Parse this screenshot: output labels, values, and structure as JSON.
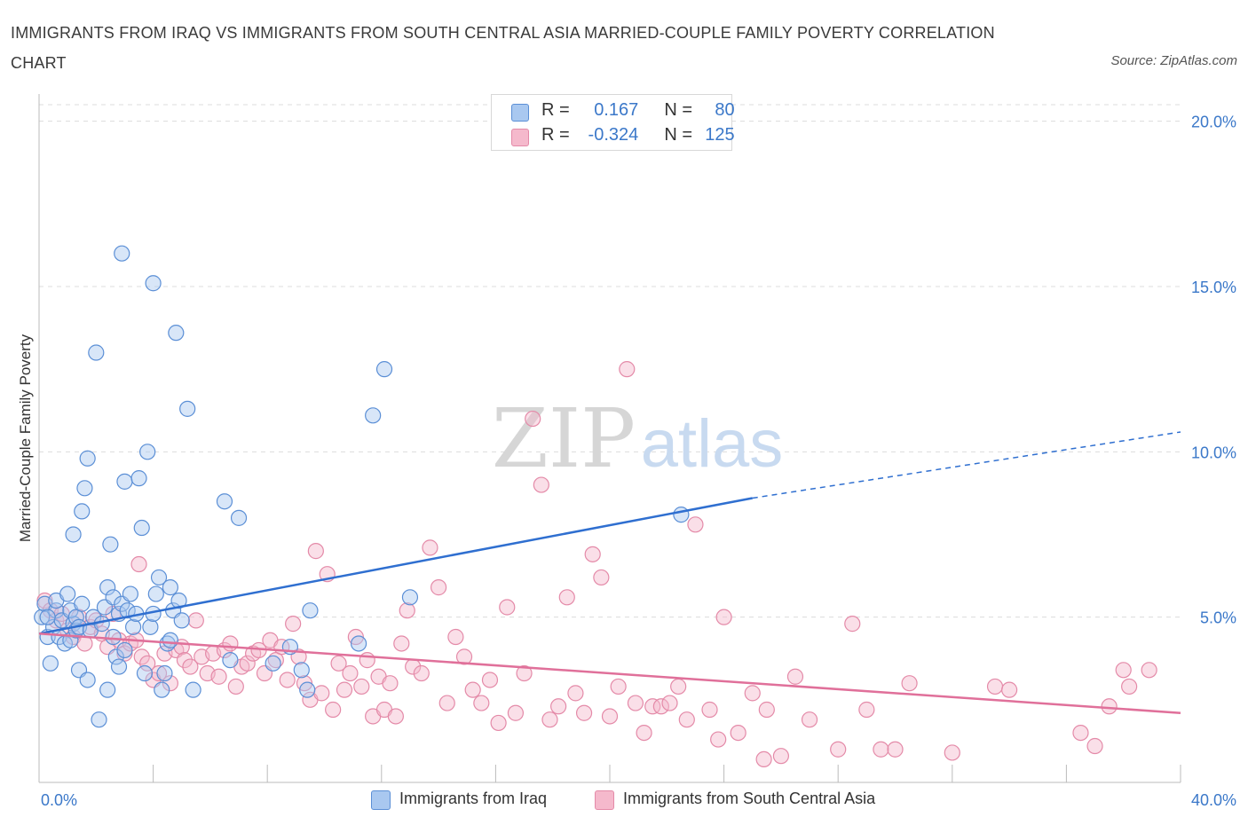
{
  "header": {
    "title": "IMMIGRANTS FROM IRAQ VS IMMIGRANTS FROM SOUTH CENTRAL ASIA MARRIED-COUPLE FAMILY POVERTY CORRELATION CHART",
    "source": "Source: ZipAtlas.com"
  },
  "watermark": {
    "zip": "ZIP",
    "atlas": "atlas"
  },
  "legend": {
    "rows": [
      {
        "r_label": "R =",
        "r_value": "0.167",
        "n_label": "N =",
        "n_value": "80",
        "color": "#a9c8f0"
      },
      {
        "r_label": "R =",
        "r_value": "-0.324",
        "n_label": "N =",
        "n_value": "125",
        "color": "#f5b9cc"
      }
    ]
  },
  "bottom_legend": [
    {
      "label": "Immigrants from Iraq",
      "color": "#a9c8f0"
    },
    {
      "label": "Immigrants from South Central Asia",
      "color": "#f5b9cc"
    }
  ],
  "colors": {
    "iraq_fill": "#a9c8f0",
    "iraq_stroke": "#5b8fd6",
    "iraq_line": "#2f6fd0",
    "sca_fill": "#f5b9cc",
    "sca_stroke": "#e48aa8",
    "sca_line": "#e0709a",
    "axis_text": "#3b78c9",
    "grid": "#dcdcdc"
  },
  "chart_data": {
    "type": "scatter",
    "title": "IMMIGRANTS FROM IRAQ VS IMMIGRANTS FROM SOUTH CENTRAL ASIA MARRIED-COUPLE FAMILY POVERTY CORRELATION CHART",
    "xlabel": "",
    "ylabel": "Married-Couple Family Poverty",
    "xlim": [
      0,
      40
    ],
    "ylim": [
      0,
      20.5
    ],
    "x_tick_labels": [
      "0.0%",
      "40.0%"
    ],
    "y_ticks": [
      5,
      10,
      15,
      20
    ],
    "y_tick_labels": [
      "5.0%",
      "10.0%",
      "15.0%",
      "20.0%"
    ],
    "grid": "horizontal dashed",
    "legend": "top-center",
    "series": [
      {
        "name": "Immigrants from Iraq",
        "trend": {
          "x": [
            0,
            25
          ],
          "y": [
            4.5,
            8.6
          ],
          "dashed_to": [
            40,
            10.6
          ]
        },
        "points": [
          [
            0.1,
            5.0
          ],
          [
            0.2,
            5.4
          ],
          [
            0.3,
            4.4
          ],
          [
            0.4,
            3.6
          ],
          [
            0.5,
            4.7
          ],
          [
            0.6,
            5.2
          ],
          [
            0.6,
            5.5
          ],
          [
            0.7,
            4.4
          ],
          [
            0.8,
            4.9
          ],
          [
            0.9,
            4.2
          ],
          [
            1.0,
            5.7
          ],
          [
            1.1,
            4.3
          ],
          [
            1.2,
            4.8
          ],
          [
            1.3,
            4.6
          ],
          [
            1.1,
            5.2
          ],
          [
            1.2,
            7.5
          ],
          [
            1.3,
            5.0
          ],
          [
            1.4,
            4.7
          ],
          [
            1.4,
            3.4
          ],
          [
            1.5,
            5.4
          ],
          [
            1.5,
            8.2
          ],
          [
            1.6,
            8.9
          ],
          [
            1.7,
            3.1
          ],
          [
            1.7,
            9.8
          ],
          [
            1.8,
            4.6
          ],
          [
            1.9,
            5.0
          ],
          [
            2.0,
            13.0
          ],
          [
            2.1,
            1.9
          ],
          [
            2.2,
            4.8
          ],
          [
            2.3,
            5.3
          ],
          [
            2.4,
            2.8
          ],
          [
            2.4,
            5.9
          ],
          [
            2.5,
            7.2
          ],
          [
            2.6,
            4.4
          ],
          [
            2.6,
            5.6
          ],
          [
            2.7,
            3.8
          ],
          [
            2.8,
            3.5
          ],
          [
            2.8,
            5.1
          ],
          [
            2.9,
            5.4
          ],
          [
            3.0,
            4.0
          ],
          [
            3.0,
            9.1
          ],
          [
            3.1,
            5.2
          ],
          [
            3.2,
            5.7
          ],
          [
            3.3,
            4.7
          ],
          [
            3.4,
            5.1
          ],
          [
            3.5,
            9.2
          ],
          [
            3.6,
            7.7
          ],
          [
            3.7,
            3.3
          ],
          [
            3.8,
            10.0
          ],
          [
            3.9,
            4.7
          ],
          [
            4.0,
            5.1
          ],
          [
            4.1,
            5.7
          ],
          [
            4.2,
            6.2
          ],
          [
            4.3,
            2.8
          ],
          [
            4.4,
            3.3
          ],
          [
            4.5,
            4.2
          ],
          [
            4.6,
            4.3
          ],
          [
            4.6,
            5.9
          ],
          [
            4.7,
            5.2
          ],
          [
            4.8,
            13.6
          ],
          [
            4.9,
            5.5
          ],
          [
            5.0,
            4.9
          ],
          [
            5.2,
            11.3
          ],
          [
            5.4,
            2.8
          ],
          [
            2.9,
            16.0
          ],
          [
            4.0,
            15.1
          ],
          [
            6.5,
            8.5
          ],
          [
            6.7,
            3.7
          ],
          [
            7.0,
            8.0
          ],
          [
            8.2,
            3.6
          ],
          [
            8.8,
            4.1
          ],
          [
            9.2,
            3.4
          ],
          [
            9.4,
            2.8
          ],
          [
            9.5,
            5.2
          ],
          [
            11.2,
            4.2
          ],
          [
            11.7,
            11.1
          ],
          [
            12.1,
            12.5
          ],
          [
            13.0,
            5.6
          ],
          [
            22.5,
            8.1
          ],
          [
            0.3,
            5.0
          ]
        ]
      },
      {
        "name": "Immigrants from South Central Asia",
        "trend": {
          "x": [
            0,
            40
          ],
          "y": [
            4.5,
            2.1
          ]
        },
        "points": [
          [
            0.2,
            5.5
          ],
          [
            0.4,
            5.2
          ],
          [
            0.6,
            4.9
          ],
          [
            0.8,
            5.1
          ],
          [
            1.0,
            4.6
          ],
          [
            1.2,
            4.4
          ],
          [
            1.4,
            5.0
          ],
          [
            1.6,
            4.2
          ],
          [
            1.8,
            4.7
          ],
          [
            2.0,
            4.9
          ],
          [
            2.2,
            4.5
          ],
          [
            2.4,
            4.1
          ],
          [
            2.6,
            5.1
          ],
          [
            2.8,
            4.3
          ],
          [
            3.0,
            3.9
          ],
          [
            3.2,
            4.2
          ],
          [
            3.4,
            4.3
          ],
          [
            3.5,
            6.6
          ],
          [
            3.6,
            3.8
          ],
          [
            3.8,
            3.6
          ],
          [
            4.0,
            3.1
          ],
          [
            4.2,
            3.3
          ],
          [
            4.4,
            3.9
          ],
          [
            4.6,
            3.0
          ],
          [
            4.8,
            4.0
          ],
          [
            5.0,
            4.1
          ],
          [
            5.1,
            3.7
          ],
          [
            5.3,
            3.5
          ],
          [
            5.5,
            4.9
          ],
          [
            5.7,
            3.8
          ],
          [
            5.9,
            3.3
          ],
          [
            6.1,
            3.9
          ],
          [
            6.3,
            3.2
          ],
          [
            6.5,
            4.0
          ],
          [
            6.7,
            4.2
          ],
          [
            6.9,
            2.9
          ],
          [
            7.1,
            3.5
          ],
          [
            7.3,
            3.6
          ],
          [
            7.5,
            3.9
          ],
          [
            7.7,
            4.0
          ],
          [
            7.9,
            3.3
          ],
          [
            8.1,
            4.3
          ],
          [
            8.3,
            3.7
          ],
          [
            8.5,
            4.1
          ],
          [
            8.7,
            3.1
          ],
          [
            8.9,
            4.8
          ],
          [
            9.1,
            3.8
          ],
          [
            9.3,
            3.0
          ],
          [
            9.5,
            2.5
          ],
          [
            9.7,
            7.0
          ],
          [
            9.9,
            2.7
          ],
          [
            10.1,
            6.3
          ],
          [
            10.3,
            2.2
          ],
          [
            10.5,
            3.6
          ],
          [
            10.7,
            2.8
          ],
          [
            10.9,
            3.3
          ],
          [
            11.1,
            4.4
          ],
          [
            11.3,
            2.9
          ],
          [
            11.5,
            3.7
          ],
          [
            11.7,
            2.0
          ],
          [
            11.9,
            3.2
          ],
          [
            12.1,
            2.2
          ],
          [
            12.3,
            3.0
          ],
          [
            12.5,
            2.0
          ],
          [
            12.7,
            4.2
          ],
          [
            12.9,
            5.2
          ],
          [
            13.1,
            3.5
          ],
          [
            13.4,
            3.3
          ],
          [
            13.7,
            7.1
          ],
          [
            14.0,
            5.9
          ],
          [
            14.3,
            2.4
          ],
          [
            14.6,
            4.4
          ],
          [
            14.9,
            3.8
          ],
          [
            15.2,
            2.8
          ],
          [
            15.5,
            2.4
          ],
          [
            15.8,
            3.1
          ],
          [
            16.1,
            1.8
          ],
          [
            16.4,
            5.3
          ],
          [
            16.7,
            2.1
          ],
          [
            17.0,
            3.3
          ],
          [
            17.3,
            11.0
          ],
          [
            17.6,
            9.0
          ],
          [
            17.9,
            1.9
          ],
          [
            18.2,
            2.3
          ],
          [
            18.5,
            5.6
          ],
          [
            18.8,
            2.7
          ],
          [
            19.1,
            2.1
          ],
          [
            19.4,
            6.9
          ],
          [
            19.7,
            6.2
          ],
          [
            20.0,
            2.0
          ],
          [
            20.3,
            2.9
          ],
          [
            20.6,
            12.5
          ],
          [
            20.9,
            2.4
          ],
          [
            21.2,
            1.5
          ],
          [
            21.5,
            2.3
          ],
          [
            21.8,
            2.3
          ],
          [
            22.1,
            2.4
          ],
          [
            22.4,
            2.9
          ],
          [
            22.7,
            1.9
          ],
          [
            23.0,
            7.8
          ],
          [
            23.5,
            2.2
          ],
          [
            24.0,
            5.0
          ],
          [
            24.5,
            1.5
          ],
          [
            25.0,
            2.7
          ],
          [
            25.5,
            2.2
          ],
          [
            26.0,
            0.8
          ],
          [
            26.5,
            3.2
          ],
          [
            27.0,
            1.9
          ],
          [
            28.0,
            1.0
          ],
          [
            28.5,
            4.8
          ],
          [
            29.5,
            1.0
          ],
          [
            30.0,
            1.0
          ],
          [
            30.5,
            3.0
          ],
          [
            32.0,
            0.9
          ],
          [
            33.5,
            2.9
          ],
          [
            34.0,
            2.8
          ],
          [
            36.5,
            1.5
          ],
          [
            37.0,
            1.1
          ],
          [
            37.5,
            2.3
          ],
          [
            38.0,
            3.4
          ],
          [
            38.2,
            2.9
          ],
          [
            38.9,
            3.4
          ],
          [
            25.4,
            0.7
          ],
          [
            29.0,
            2.2
          ],
          [
            23.8,
            1.3
          ]
        ]
      }
    ]
  }
}
